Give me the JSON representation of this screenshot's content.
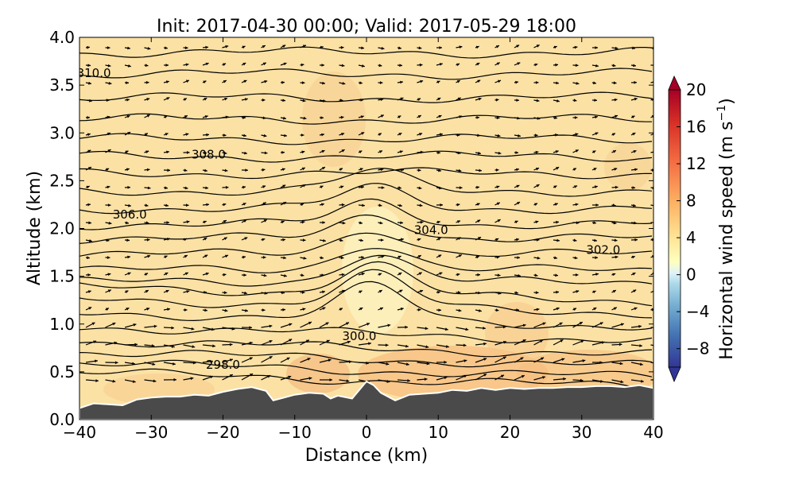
{
  "chart_data": {
    "type": "heatmap",
    "title": "Init: 2017-04-30 00:00; Valid: 2017-05-29 18:00",
    "xlabel": "Distance (km)",
    "ylabel": "Altitude (km)",
    "xlim": [
      -40,
      40
    ],
    "ylim": [
      0.0,
      4.0
    ],
    "xticks": [
      "−40",
      "−30",
      "−20",
      "−10",
      "0",
      "10",
      "20",
      "30",
      "40"
    ],
    "yticks": [
      "0.0",
      "0.5",
      "1.0",
      "1.5",
      "2.0",
      "2.5",
      "3.0",
      "3.5",
      "4.0"
    ],
    "colorbar": {
      "label": "Horizontal wind speed (m s",
      "label_exp": "−1",
      "label_close": ")",
      "ticks": [
        "−8",
        "−4",
        "0",
        "4",
        "8",
        "12",
        "16",
        "20"
      ],
      "range": [
        -10,
        20
      ],
      "extend": "both"
    },
    "isentrope_labels": [
      {
        "text": "310.0",
        "x": -38,
        "y": 3.62
      },
      {
        "text": "308.0",
        "x": -22,
        "y": 2.77
      },
      {
        "text": "306.0",
        "x": -33,
        "y": 2.14
      },
      {
        "text": "304.0",
        "x": 9,
        "y": 1.98
      },
      {
        "text": "302.0",
        "x": 33,
        "y": 1.77
      },
      {
        "text": "300.0",
        "x": -1,
        "y": 0.87
      },
      {
        "text": "298.0",
        "x": -20,
        "y": 0.57
      }
    ],
    "terrain": {
      "x": [
        -40,
        -38,
        -36,
        -34,
        -32,
        -30,
        -28,
        -26,
        -24,
        -22,
        -20,
        -18,
        -16,
        -14,
        -13,
        -12,
        -10,
        -8,
        -6,
        -5,
        -4,
        -2,
        0,
        1,
        2,
        3,
        4,
        6,
        8,
        10,
        12,
        14,
        16,
        18,
        20,
        22,
        24,
        26,
        28,
        30,
        32,
        34,
        36,
        38,
        40
      ],
      "y": [
        0.12,
        0.17,
        0.16,
        0.15,
        0.21,
        0.23,
        0.24,
        0.24,
        0.26,
        0.25,
        0.29,
        0.32,
        0.34,
        0.3,
        0.2,
        0.22,
        0.26,
        0.28,
        0.27,
        0.22,
        0.25,
        0.22,
        0.4,
        0.36,
        0.28,
        0.24,
        0.2,
        0.26,
        0.27,
        0.28,
        0.31,
        0.3,
        0.33,
        0.31,
        0.33,
        0.32,
        0.33,
        0.33,
        0.34,
        0.34,
        0.35,
        0.35,
        0.34,
        0.36,
        0.33
      ]
    },
    "colors": {
      "terrain": "#4a4a4a",
      "terrain_edge": "#ffffff",
      "background_field": "#fbe1a4",
      "contour": "#000000"
    }
  }
}
